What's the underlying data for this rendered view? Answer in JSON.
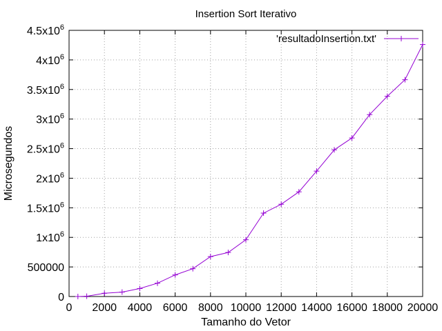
{
  "chart_data": {
    "type": "line",
    "title": "Insertion Sort Iterativo",
    "xlabel": "Tamanho do Vetor",
    "ylabel": "Microsegundos",
    "xlim": [
      0,
      20000
    ],
    "ylim": [
      0,
      4500000
    ],
    "grid": true,
    "legend_position": "top-right",
    "x_ticks": [
      {
        "value": 0,
        "label": "0"
      },
      {
        "value": 2000,
        "label": "2000"
      },
      {
        "value": 4000,
        "label": "4000"
      },
      {
        "value": 6000,
        "label": "6000"
      },
      {
        "value": 8000,
        "label": "8000"
      },
      {
        "value": 10000,
        "label": "10000"
      },
      {
        "value": 12000,
        "label": "12000"
      },
      {
        "value": 14000,
        "label": "14000"
      },
      {
        "value": 16000,
        "label": "16000"
      },
      {
        "value": 18000,
        "label": "18000"
      },
      {
        "value": 20000,
        "label": "20000"
      }
    ],
    "y_ticks": [
      {
        "value": 0,
        "mantissa": "0",
        "exp": ""
      },
      {
        "value": 500000,
        "mantissa": "500000",
        "exp": ""
      },
      {
        "value": 1000000,
        "mantissa": "1x10",
        "exp": "6"
      },
      {
        "value": 1500000,
        "mantissa": "1.5x10",
        "exp": "6"
      },
      {
        "value": 2000000,
        "mantissa": "2x10",
        "exp": "6"
      },
      {
        "value": 2500000,
        "mantissa": "2.5x10",
        "exp": "6"
      },
      {
        "value": 3000000,
        "mantissa": "3x10",
        "exp": "6"
      },
      {
        "value": 3500000,
        "mantissa": "3.5x10",
        "exp": "6"
      },
      {
        "value": 4000000,
        "mantissa": "4x10",
        "exp": "6"
      },
      {
        "value": 4500000,
        "mantissa": "4.5x10",
        "exp": "6"
      }
    ],
    "series": [
      {
        "name": "'resultadoInsertion.txt'",
        "color": "#9400d3",
        "x": [
          500,
          1000,
          2000,
          3000,
          4000,
          5000,
          6000,
          7000,
          8000,
          9000,
          10000,
          11000,
          12000,
          13000,
          14000,
          15000,
          16000,
          17000,
          18000,
          19000,
          20000
        ],
        "y": [
          0,
          5000,
          55000,
          75000,
          135000,
          225000,
          365000,
          470000,
          675000,
          745000,
          960000,
          1410000,
          1560000,
          1770000,
          2120000,
          2480000,
          2680000,
          3075000,
          3385000,
          3665000,
          4260000
        ]
      }
    ]
  }
}
